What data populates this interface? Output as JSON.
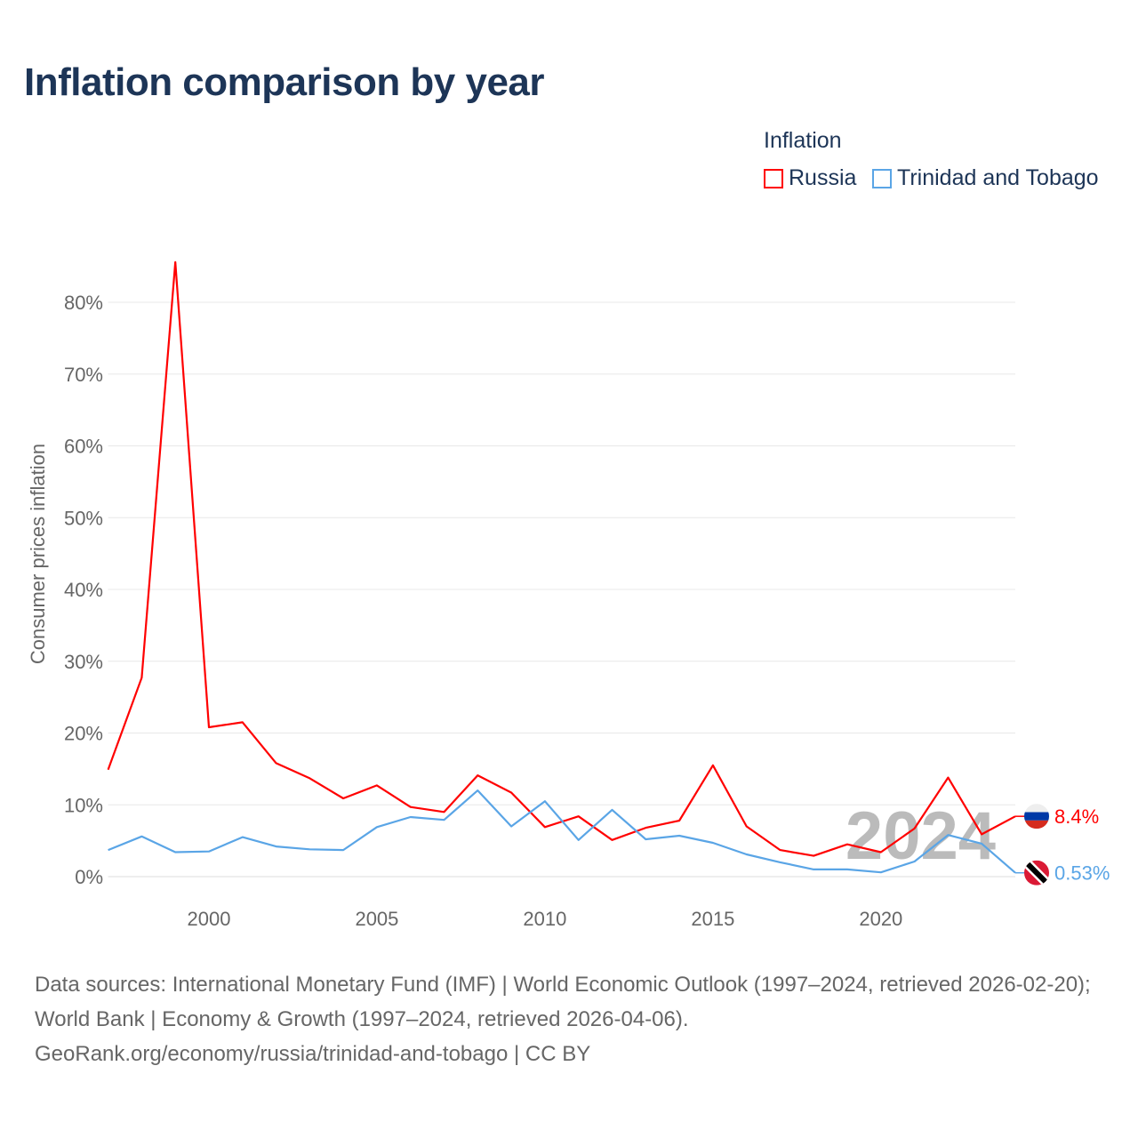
{
  "chart_data": {
    "type": "line",
    "title": "Inflation comparison by year",
    "legend_title": "Inflation",
    "legend_placement": "top-right",
    "ylabel": "Consumer prices inflation",
    "xlabel": "",
    "xlim": [
      1997,
      2024
    ],
    "ylim": [
      0,
      85
    ],
    "yticks": [
      0,
      10,
      20,
      30,
      40,
      50,
      60,
      70,
      80
    ],
    "ytick_labels": [
      "0%",
      "10%",
      "20%",
      "30%",
      "40%",
      "50%",
      "60%",
      "70%",
      "80%"
    ],
    "xticks": [
      2000,
      2005,
      2010,
      2015,
      2020
    ],
    "xtick_labels": [
      "2000",
      "2005",
      "2010",
      "2015",
      "2020"
    ],
    "grid": true,
    "watermark_year": "2024",
    "x": [
      1997,
      1998,
      1999,
      2000,
      2001,
      2002,
      2003,
      2004,
      2005,
      2006,
      2007,
      2008,
      2009,
      2010,
      2011,
      2012,
      2013,
      2014,
      2015,
      2016,
      2017,
      2018,
      2019,
      2020,
      2021,
      2022,
      2023,
      2024
    ],
    "series": [
      {
        "name": "Russia",
        "color": "#ff0000",
        "end_label": "8.4%",
        "values": [
          14.9,
          27.7,
          85.6,
          20.8,
          21.5,
          15.8,
          13.7,
          10.9,
          12.7,
          9.7,
          9.0,
          14.1,
          11.7,
          6.9,
          8.4,
          5.1,
          6.8,
          7.8,
          15.5,
          7.0,
          3.7,
          2.9,
          4.5,
          3.4,
          6.7,
          13.8,
          5.9,
          8.4
        ]
      },
      {
        "name": "Trinidad and Tobago",
        "color": "#5aa5e6",
        "end_label": "0.53%",
        "values": [
          3.7,
          5.6,
          3.4,
          3.5,
          5.5,
          4.2,
          3.8,
          3.7,
          6.9,
          8.3,
          7.9,
          12.0,
          7.0,
          10.5,
          5.1,
          9.3,
          5.2,
          5.7,
          4.7,
          3.1,
          2.0,
          1.0,
          1.0,
          0.6,
          2.1,
          5.8,
          4.6,
          0.53
        ]
      }
    ]
  },
  "footer": {
    "sources": "Data sources: International Monetary Fund (IMF) | World Economic Outlook (1997–2024, retrieved 2026-02-20); World Bank | Economy & Growth (1997–2024, retrieved 2026-04-06).",
    "link": "GeoRank.org/economy/russia/trinidad-and-tobago | CC BY"
  }
}
